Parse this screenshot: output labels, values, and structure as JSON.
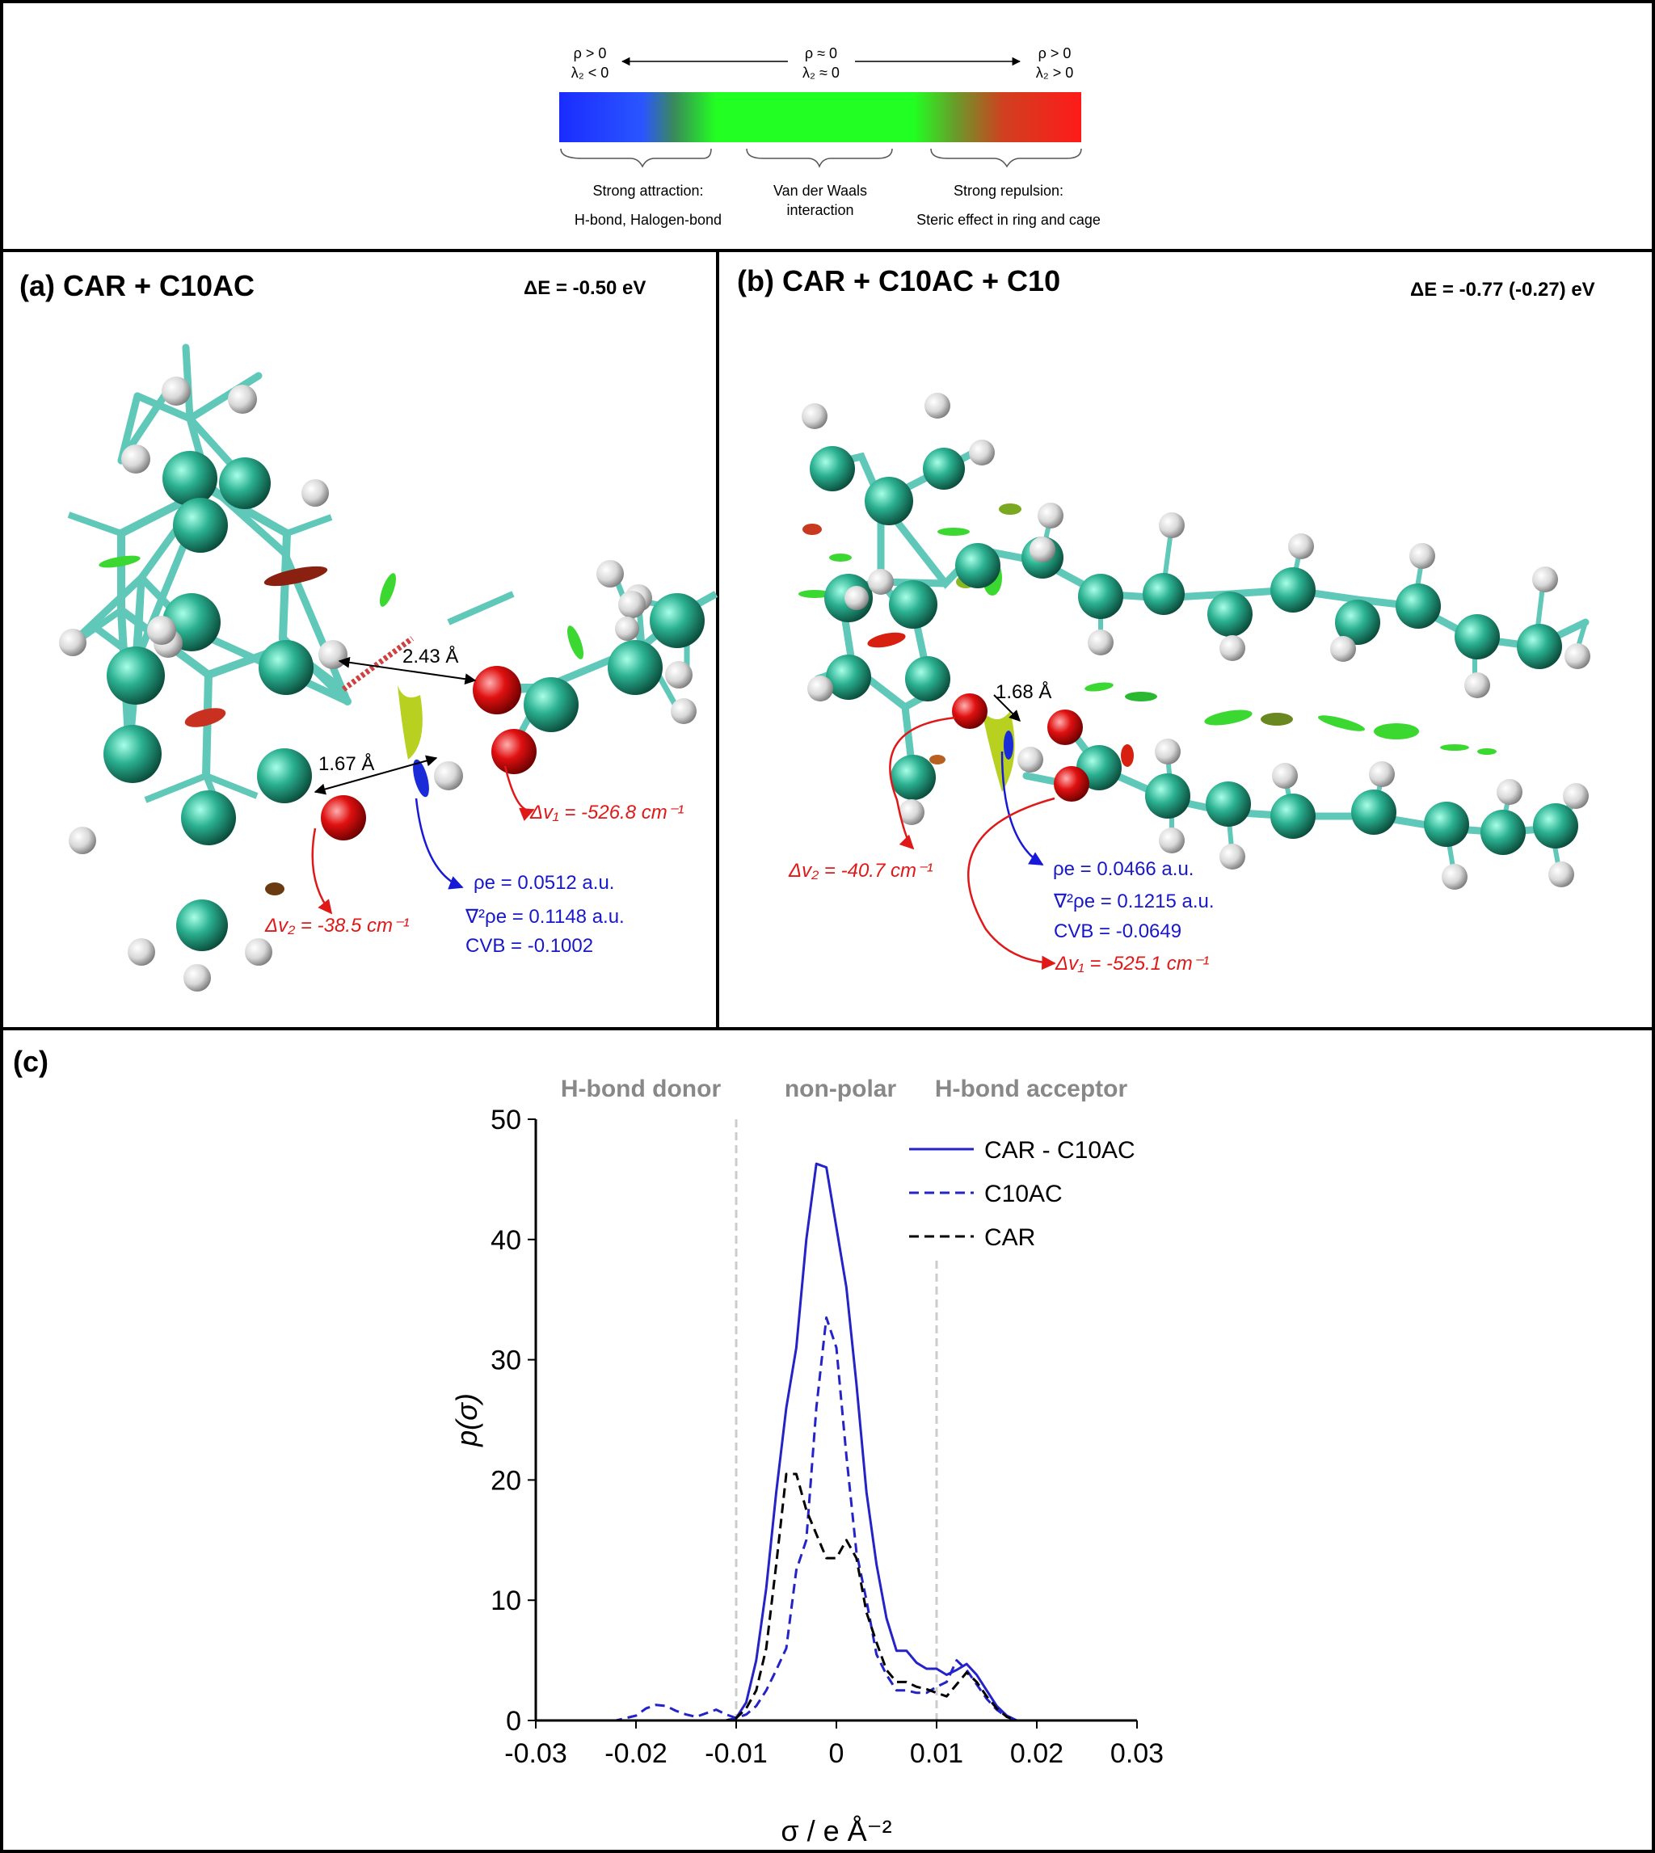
{
  "color_bar": {
    "left_condition_1": "ρ > 0",
    "left_condition_2": "λ₂ < 0",
    "middle_condition_1": "ρ ≈ 0",
    "middle_condition_2": "λ₂ ≈ 0",
    "right_condition_1": "ρ > 0",
    "right_condition_2": "λ₂ > 0",
    "left_caption_1": "Strong attraction:",
    "left_caption_2": "H-bond, Halogen-bond",
    "middle_caption_1": "Van der Waals",
    "middle_caption_2": "interaction",
    "right_caption_1": "Strong repulsion:",
    "right_caption_2": "Steric effect in ring and cage",
    "colors": [
      "#1a2cff",
      "#22ff22",
      "#ff1a1a"
    ]
  },
  "panel_a": {
    "title": "(a) CAR + C10AC",
    "delta_e": "ΔE = -0.50 eV",
    "distance_1": "2.43 Å",
    "distance_2": "1.67 Å",
    "delta_v1": "Δv₁ =  -526.8 cm⁻¹",
    "delta_v2": "Δv₂ =  -38.5 cm⁻¹",
    "rho": "ρe =  0.0512 a.u.",
    "laplacian": "∇²ρe =  0.1148 a.u.",
    "cvb": "CVB = -0.1002"
  },
  "panel_b": {
    "title": "(b) CAR + C10AC + C10",
    "delta_e": "ΔE = -0.77 (-0.27) eV",
    "distance_1": "1.68 Å",
    "delta_v1": "Δv₁ =  -525.1 cm⁻¹",
    "delta_v2": "Δv₂ =  -40.7 cm⁻¹",
    "rho": "ρe =  0.0466 a.u.",
    "laplacian": "∇²ρe =  0.1215 a.u.",
    "cvb": "CVB = -0.0649"
  },
  "panel_c": {
    "label": "(c)",
    "region_labels": [
      "H-bond donor",
      "non-polar",
      "H-bond acceptor"
    ]
  },
  "chart_data": {
    "type": "line",
    "title": "",
    "xlabel": "σ / e Å⁻²",
    "ylabel": "p(σ)",
    "xlim": [
      -0.03,
      0.03
    ],
    "ylim": [
      0,
      50
    ],
    "x_ticks": [
      "-0.03",
      "-0.02",
      "-0.01",
      "0",
      "0.01",
      "0.02",
      "0.03"
    ],
    "y_ticks": [
      "0",
      "10",
      "20",
      "30",
      "40",
      "50"
    ],
    "grid": false,
    "legend_position": "top-right",
    "vertical_markers": [
      -0.01,
      0.01
    ],
    "series": [
      {
        "name": "CAR - C10AC",
        "style": "solid",
        "color": "#2323c8",
        "points": [
          [
            -0.03,
            0
          ],
          [
            -0.011,
            0
          ],
          [
            -0.01,
            0.2
          ],
          [
            -0.009,
            1.5
          ],
          [
            -0.008,
            5
          ],
          [
            -0.007,
            11
          ],
          [
            -0.006,
            19
          ],
          [
            -0.005,
            26
          ],
          [
            -0.004,
            31
          ],
          [
            -0.003,
            40
          ],
          [
            -0.002,
            46.3
          ],
          [
            -0.001,
            46
          ],
          [
            0,
            41
          ],
          [
            0.001,
            36
          ],
          [
            0.002,
            28
          ],
          [
            0.003,
            19
          ],
          [
            0.004,
            13
          ],
          [
            0.005,
            8.5
          ],
          [
            0.006,
            5.8
          ],
          [
            0.007,
            5.8
          ],
          [
            0.008,
            4.8
          ],
          [
            0.009,
            4.3
          ],
          [
            0.01,
            4.3
          ],
          [
            0.011,
            3.8
          ],
          [
            0.012,
            4.2
          ],
          [
            0.013,
            4.7
          ],
          [
            0.014,
            3.8
          ],
          [
            0.015,
            2.5
          ],
          [
            0.016,
            1.2
          ],
          [
            0.017,
            0.4
          ],
          [
            0.018,
            0
          ],
          [
            0.03,
            0
          ]
        ]
      },
      {
        "name": "C10AC",
        "style": "dashed",
        "color": "#2323c8",
        "points": [
          [
            -0.03,
            0
          ],
          [
            -0.022,
            0
          ],
          [
            -0.02,
            0.4
          ],
          [
            -0.019,
            1
          ],
          [
            -0.018,
            1.3
          ],
          [
            -0.017,
            1.2
          ],
          [
            -0.016,
            0.8
          ],
          [
            -0.015,
            0.5
          ],
          [
            -0.014,
            0.3
          ],
          [
            -0.013,
            0.6
          ],
          [
            -0.012,
            0.9
          ],
          [
            -0.011,
            0.5
          ],
          [
            -0.01,
            0.2
          ],
          [
            -0.009,
            0.5
          ],
          [
            -0.008,
            1.2
          ],
          [
            -0.007,
            2.5
          ],
          [
            -0.006,
            4.2
          ],
          [
            -0.005,
            6
          ],
          [
            -0.004,
            12.5
          ],
          [
            -0.003,
            15
          ],
          [
            -0.002,
            26
          ],
          [
            -0.001,
            33.5
          ],
          [
            0,
            31
          ],
          [
            0.001,
            22
          ],
          [
            0.002,
            14
          ],
          [
            0.003,
            10
          ],
          [
            0.004,
            5.5
          ],
          [
            0.005,
            3.8
          ],
          [
            0.006,
            2.5
          ],
          [
            0.007,
            2.5
          ],
          [
            0.008,
            2.3
          ],
          [
            0.009,
            2.3
          ],
          [
            0.01,
            2.8
          ],
          [
            0.011,
            3.2
          ],
          [
            0.012,
            5
          ],
          [
            0.013,
            4.2
          ],
          [
            0.014,
            3
          ],
          [
            0.015,
            1.8
          ],
          [
            0.016,
            0.9
          ],
          [
            0.017,
            0.3
          ],
          [
            0.018,
            0
          ],
          [
            0.03,
            0
          ]
        ]
      },
      {
        "name": "CAR",
        "style": "dashed",
        "color": "#000000",
        "points": [
          [
            -0.03,
            0
          ],
          [
            -0.011,
            0
          ],
          [
            -0.01,
            0.2
          ],
          [
            -0.009,
            1
          ],
          [
            -0.008,
            2.5
          ],
          [
            -0.007,
            6
          ],
          [
            -0.006,
            13
          ],
          [
            -0.005,
            20.5
          ],
          [
            -0.004,
            20.5
          ],
          [
            -0.003,
            17.5
          ],
          [
            -0.002,
            15.5
          ],
          [
            -0.001,
            13.5
          ],
          [
            0,
            13.5
          ],
          [
            0.001,
            15
          ],
          [
            0.002,
            13.5
          ],
          [
            0.003,
            9
          ],
          [
            0.004,
            6.5
          ],
          [
            0.005,
            4.2
          ],
          [
            0.006,
            3.2
          ],
          [
            0.007,
            3.2
          ],
          [
            0.008,
            2.8
          ],
          [
            0.009,
            2.6
          ],
          [
            0.01,
            2.3
          ],
          [
            0.011,
            2
          ],
          [
            0.012,
            3
          ],
          [
            0.013,
            4
          ],
          [
            0.014,
            3.2
          ],
          [
            0.015,
            2
          ],
          [
            0.016,
            1
          ],
          [
            0.017,
            0.3
          ],
          [
            0.018,
            0
          ],
          [
            0.03,
            0
          ]
        ]
      }
    ]
  }
}
